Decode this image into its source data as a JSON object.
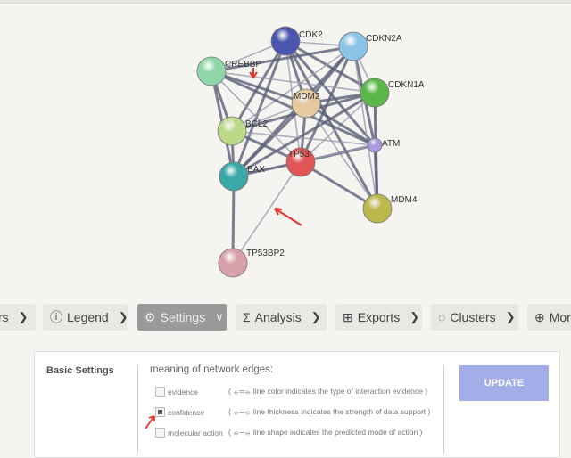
{
  "network": {
    "nodes": [
      {
        "id": "CDK2",
        "color": "#4a56b0"
      },
      {
        "id": "CDKN2A",
        "color": "#8cc4e8"
      },
      {
        "id": "CREBBP",
        "color": "#8fd6a8"
      },
      {
        "id": "CDKN1A",
        "color": "#5ab848"
      },
      {
        "id": "MDM2",
        "color": "#e6c9a0"
      },
      {
        "id": "BCL2",
        "color": "#bcd98a"
      },
      {
        "id": "ATM",
        "color": "#a99ae0"
      },
      {
        "id": "TP53",
        "color": "#e05555"
      },
      {
        "id": "BAX",
        "color": "#3aa8a8"
      },
      {
        "id": "MDM4",
        "color": "#bdb84c"
      },
      {
        "id": "TP53BP2",
        "color": "#d8a0a8"
      }
    ],
    "edges": [
      [
        "CDK2",
        "CDKN2A"
      ],
      [
        "CDK2",
        "CDKN1A"
      ],
      [
        "CDK2",
        "MDM2"
      ],
      [
        "CDK2",
        "TP53"
      ],
      [
        "CDK2",
        "BCL2"
      ],
      [
        "CDK2",
        "BAX"
      ],
      [
        "CDK2",
        "CREBBP"
      ],
      [
        "CDK2",
        "ATM"
      ],
      [
        "CDK2",
        "MDM4"
      ],
      [
        "CDKN2A",
        "CDKN1A"
      ],
      [
        "CDKN2A",
        "MDM2"
      ],
      [
        "CDKN2A",
        "TP53"
      ],
      [
        "CDKN2A",
        "BCL2"
      ],
      [
        "CDKN2A",
        "BAX"
      ],
      [
        "CDKN2A",
        "ATM"
      ],
      [
        "CDKN2A",
        "MDM4"
      ],
      [
        "CDKN2A",
        "CREBBP"
      ],
      [
        "CREBBP",
        "MDM2"
      ],
      [
        "CREBBP",
        "TP53"
      ],
      [
        "CREBBP",
        "BCL2"
      ],
      [
        "CREBBP",
        "BAX"
      ],
      [
        "CREBBP",
        "CDKN1A"
      ],
      [
        "CREBBP",
        "ATM"
      ],
      [
        "CDKN1A",
        "MDM2"
      ],
      [
        "CDKN1A",
        "TP53"
      ],
      [
        "CDKN1A",
        "BCL2"
      ],
      [
        "CDKN1A",
        "BAX"
      ],
      [
        "CDKN1A",
        "ATM"
      ],
      [
        "CDKN1A",
        "MDM4"
      ],
      [
        "MDM2",
        "TP53"
      ],
      [
        "MDM2",
        "BCL2"
      ],
      [
        "MDM2",
        "BAX"
      ],
      [
        "MDM2",
        "ATM"
      ],
      [
        "MDM2",
        "MDM4"
      ],
      [
        "BCL2",
        "TP53"
      ],
      [
        "BCL2",
        "BAX"
      ],
      [
        "BCL2",
        "ATM"
      ],
      [
        "ATM",
        "TP53"
      ],
      [
        "ATM",
        "MDM4"
      ],
      [
        "ATM",
        "BAX"
      ],
      [
        "TP53",
        "BAX"
      ],
      [
        "TP53",
        "MDM4"
      ],
      [
        "TP53",
        "TP53BP2"
      ],
      [
        "BAX",
        "TP53BP2"
      ]
    ]
  },
  "toolbar": [
    {
      "label": "rs",
      "icon": "none"
    },
    {
      "label": "Legend",
      "icon": "info-icon"
    },
    {
      "label": "Settings",
      "icon": "gear-icon",
      "active": true
    },
    {
      "label": "Analysis",
      "icon": "sigma-icon"
    },
    {
      "label": "Exports",
      "icon": "table-icon"
    },
    {
      "label": "Clusters",
      "icon": "clusters-icon"
    },
    {
      "label": "Mor",
      "icon": "plus-circle-icon"
    }
  ],
  "settings": {
    "section_title": "Basic Settings",
    "edges_heading": "meaning of network edges:",
    "options": [
      {
        "label": "evidence",
        "checked": false,
        "desc": "( ⦵═⦵ line color indicates the type of interaction evidence )"
      },
      {
        "label": "confidence",
        "checked": true,
        "desc": "( ⦵─⦵ line thickness indicates the strength of data support )"
      },
      {
        "label": "molecular action",
        "checked": false,
        "desc": "( ⦵─⦵ line shape indicates the predicted mode of action )"
      }
    ],
    "update_label": "UPDATE"
  },
  "colors": {
    "accent": "#a3aee8",
    "arrow": "#e8302a"
  }
}
